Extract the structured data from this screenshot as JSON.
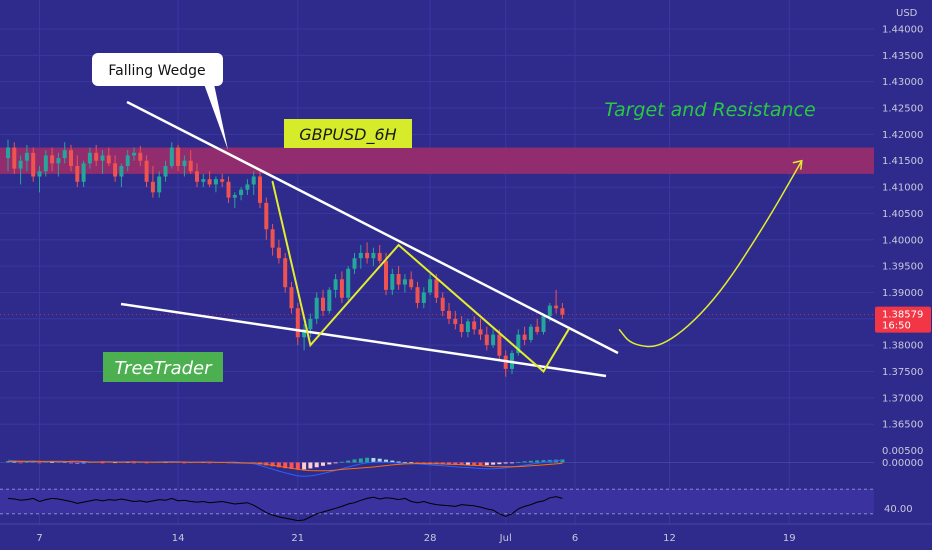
{
  "chart_data": [
    {
      "type": "candlestick",
      "symbol_label": "GBPUSD_6H",
      "currency": "USD",
      "ylim": [
        1.362,
        1.4455
      ],
      "y_ticks": [
        "1.44000",
        "1.43500",
        "1.43000",
        "1.42500",
        "1.42000",
        "1.41500",
        "1.41000",
        "1.40500",
        "1.40000",
        "1.39500",
        "1.39000",
        "1.38500",
        "1.38000",
        "1.37500",
        "1.37000",
        "1.36500"
      ],
      "x_ticks": [
        "7",
        "14",
        "21",
        "28",
        "Jul",
        "6",
        "12",
        "19"
      ],
      "last_price": {
        "value": "1.38579",
        "countdown": "16:50",
        "y": 1.38579
      },
      "resistance_zone": [
        1.4125,
        1.4175
      ],
      "candles": [
        {
          "o": 1.4155,
          "h": 1.419,
          "l": 1.413,
          "c": 1.4175
        },
        {
          "o": 1.4175,
          "h": 1.4185,
          "l": 1.4125,
          "c": 1.4135
        },
        {
          "o": 1.4135,
          "h": 1.416,
          "l": 1.4105,
          "c": 1.415
        },
        {
          "o": 1.415,
          "h": 1.418,
          "l": 1.413,
          "c": 1.4165
        },
        {
          "o": 1.4165,
          "h": 1.4175,
          "l": 1.411,
          "c": 1.412
        },
        {
          "o": 1.412,
          "h": 1.414,
          "l": 1.409,
          "c": 1.413
        },
        {
          "o": 1.413,
          "h": 1.417,
          "l": 1.412,
          "c": 1.416
        },
        {
          "o": 1.416,
          "h": 1.4175,
          "l": 1.413,
          "c": 1.4145
        },
        {
          "o": 1.4145,
          "h": 1.4165,
          "l": 1.412,
          "c": 1.4155
        },
        {
          "o": 1.4155,
          "h": 1.4185,
          "l": 1.4145,
          "c": 1.417
        },
        {
          "o": 1.417,
          "h": 1.418,
          "l": 1.413,
          "c": 1.414
        },
        {
          "o": 1.414,
          "h": 1.416,
          "l": 1.41,
          "c": 1.411
        },
        {
          "o": 1.411,
          "h": 1.415,
          "l": 1.41,
          "c": 1.4145
        },
        {
          "o": 1.4145,
          "h": 1.4175,
          "l": 1.4135,
          "c": 1.4165
        },
        {
          "o": 1.4165,
          "h": 1.418,
          "l": 1.414,
          "c": 1.415
        },
        {
          "o": 1.415,
          "h": 1.417,
          "l": 1.4125,
          "c": 1.416
        },
        {
          "o": 1.416,
          "h": 1.4175,
          "l": 1.414,
          "c": 1.4145
        },
        {
          "o": 1.4145,
          "h": 1.416,
          "l": 1.411,
          "c": 1.412
        },
        {
          "o": 1.412,
          "h": 1.4145,
          "l": 1.41,
          "c": 1.414
        },
        {
          "o": 1.414,
          "h": 1.417,
          "l": 1.413,
          "c": 1.416
        },
        {
          "o": 1.416,
          "h": 1.4175,
          "l": 1.415,
          "c": 1.4165
        },
        {
          "o": 1.4165,
          "h": 1.4178,
          "l": 1.414,
          "c": 1.415
        },
        {
          "o": 1.415,
          "h": 1.416,
          "l": 1.41,
          "c": 1.411
        },
        {
          "o": 1.411,
          "h": 1.414,
          "l": 1.408,
          "c": 1.409
        },
        {
          "o": 1.409,
          "h": 1.413,
          "l": 1.408,
          "c": 1.412
        },
        {
          "o": 1.412,
          "h": 1.415,
          "l": 1.411,
          "c": 1.414
        },
        {
          "o": 1.414,
          "h": 1.4185,
          "l": 1.4135,
          "c": 1.4175
        },
        {
          "o": 1.4175,
          "h": 1.418,
          "l": 1.413,
          "c": 1.414
        },
        {
          "o": 1.414,
          "h": 1.416,
          "l": 1.412,
          "c": 1.415
        },
        {
          "o": 1.415,
          "h": 1.417,
          "l": 1.4125,
          "c": 1.413
        },
        {
          "o": 1.413,
          "h": 1.4145,
          "l": 1.41,
          "c": 1.411
        },
        {
          "o": 1.411,
          "h": 1.4125,
          "l": 1.41,
          "c": 1.4115
        },
        {
          "o": 1.4115,
          "h": 1.413,
          "l": 1.41,
          "c": 1.4105
        },
        {
          "o": 1.4105,
          "h": 1.412,
          "l": 1.409,
          "c": 1.4115
        },
        {
          "o": 1.4115,
          "h": 1.4125,
          "l": 1.41,
          "c": 1.411
        },
        {
          "o": 1.411,
          "h": 1.412,
          "l": 1.407,
          "c": 1.408
        },
        {
          "o": 1.408,
          "h": 1.409,
          "l": 1.406,
          "c": 1.4085
        },
        {
          "o": 1.4085,
          "h": 1.41,
          "l": 1.4075,
          "c": 1.4095
        },
        {
          "o": 1.4095,
          "h": 1.4115,
          "l": 1.4085,
          "c": 1.4105
        },
        {
          "o": 1.4105,
          "h": 1.413,
          "l": 1.4085,
          "c": 1.412
        },
        {
          "o": 1.412,
          "h": 1.413,
          "l": 1.406,
          "c": 1.407
        },
        {
          "o": 1.407,
          "h": 1.408,
          "l": 1.4,
          "c": 1.402
        },
        {
          "o": 1.402,
          "h": 1.403,
          "l": 1.397,
          "c": 1.3985
        },
        {
          "o": 1.3985,
          "h": 1.4,
          "l": 1.3955,
          "c": 1.3965
        },
        {
          "o": 1.3965,
          "h": 1.3975,
          "l": 1.39,
          "c": 1.391
        },
        {
          "o": 1.391,
          "h": 1.392,
          "l": 1.386,
          "c": 1.387
        },
        {
          "o": 1.387,
          "h": 1.388,
          "l": 1.38,
          "c": 1.3815
        },
        {
          "o": 1.3815,
          "h": 1.384,
          "l": 1.379,
          "c": 1.383
        },
        {
          "o": 1.383,
          "h": 1.386,
          "l": 1.3815,
          "c": 1.385
        },
        {
          "o": 1.385,
          "h": 1.39,
          "l": 1.384,
          "c": 1.389
        },
        {
          "o": 1.389,
          "h": 1.3905,
          "l": 1.3855,
          "c": 1.3865
        },
        {
          "o": 1.3865,
          "h": 1.391,
          "l": 1.386,
          "c": 1.3905
        },
        {
          "o": 1.3905,
          "h": 1.3935,
          "l": 1.389,
          "c": 1.3925
        },
        {
          "o": 1.3925,
          "h": 1.394,
          "l": 1.388,
          "c": 1.389
        },
        {
          "o": 1.389,
          "h": 1.395,
          "l": 1.3885,
          "c": 1.3945
        },
        {
          "o": 1.3945,
          "h": 1.3975,
          "l": 1.3935,
          "c": 1.3965
        },
        {
          "o": 1.3965,
          "h": 1.399,
          "l": 1.3945,
          "c": 1.3975
        },
        {
          "o": 1.3975,
          "h": 1.3995,
          "l": 1.3955,
          "c": 1.3965
        },
        {
          "o": 1.3965,
          "h": 1.3985,
          "l": 1.395,
          "c": 1.3975
        },
        {
          "o": 1.3975,
          "h": 1.399,
          "l": 1.3955,
          "c": 1.396
        },
        {
          "o": 1.396,
          "h": 1.3975,
          "l": 1.3895,
          "c": 1.3905
        },
        {
          "o": 1.3905,
          "h": 1.3945,
          "l": 1.3895,
          "c": 1.3935
        },
        {
          "o": 1.3935,
          "h": 1.395,
          "l": 1.3905,
          "c": 1.3915
        },
        {
          "o": 1.3915,
          "h": 1.3935,
          "l": 1.39,
          "c": 1.3925
        },
        {
          "o": 1.3925,
          "h": 1.394,
          "l": 1.3905,
          "c": 1.391
        },
        {
          "o": 1.391,
          "h": 1.392,
          "l": 1.387,
          "c": 1.388
        },
        {
          "o": 1.388,
          "h": 1.391,
          "l": 1.387,
          "c": 1.39
        },
        {
          "o": 1.39,
          "h": 1.3935,
          "l": 1.3895,
          "c": 1.3925
        },
        {
          "o": 1.3925,
          "h": 1.3935,
          "l": 1.388,
          "c": 1.389
        },
        {
          "o": 1.389,
          "h": 1.39,
          "l": 1.3855,
          "c": 1.3865
        },
        {
          "o": 1.3865,
          "h": 1.388,
          "l": 1.384,
          "c": 1.385
        },
        {
          "o": 1.385,
          "h": 1.3865,
          "l": 1.383,
          "c": 1.384
        },
        {
          "o": 1.384,
          "h": 1.3855,
          "l": 1.3815,
          "c": 1.3825
        },
        {
          "o": 1.3825,
          "h": 1.385,
          "l": 1.3815,
          "c": 1.3845
        },
        {
          "o": 1.3845,
          "h": 1.3855,
          "l": 1.382,
          "c": 1.383
        },
        {
          "o": 1.383,
          "h": 1.385,
          "l": 1.381,
          "c": 1.382
        },
        {
          "o": 1.382,
          "h": 1.3835,
          "l": 1.379,
          "c": 1.38
        },
        {
          "o": 1.38,
          "h": 1.383,
          "l": 1.3795,
          "c": 1.382
        },
        {
          "o": 1.382,
          "h": 1.383,
          "l": 1.377,
          "c": 1.378
        },
        {
          "o": 1.378,
          "h": 1.379,
          "l": 1.374,
          "c": 1.3755
        },
        {
          "o": 1.3755,
          "h": 1.379,
          "l": 1.3745,
          "c": 1.3785
        },
        {
          "o": 1.3785,
          "h": 1.383,
          "l": 1.378,
          "c": 1.382
        },
        {
          "o": 1.382,
          "h": 1.3835,
          "l": 1.38,
          "c": 1.381
        },
        {
          "o": 1.381,
          "h": 1.384,
          "l": 1.3805,
          "c": 1.3835
        },
        {
          "o": 1.3835,
          "h": 1.385,
          "l": 1.382,
          "c": 1.3825
        },
        {
          "o": 1.3825,
          "h": 1.386,
          "l": 1.382,
          "c": 1.3855
        },
        {
          "o": 1.3855,
          "h": 1.388,
          "l": 1.3845,
          "c": 1.3875
        },
        {
          "o": 1.3875,
          "h": 1.3905,
          "l": 1.386,
          "c": 1.387
        },
        {
          "o": 1.387,
          "h": 1.388,
          "l": 1.385,
          "c": 1.3858
        }
      ],
      "pattern_lines": {
        "upper": [
          [
            0,
            1.423
          ],
          [
            95,
            1.375
          ]
        ],
        "lower": [
          [
            0,
            1.383
          ],
          [
            96,
            1.371
          ]
        ]
      },
      "zigzag": [
        [
          42,
          1.411
        ],
        [
          48,
          1.38
        ],
        [
          62,
          1.399
        ],
        [
          85,
          1.375
        ],
        [
          89,
          1.383
        ]
      ],
      "projection_arrow": [
        [
          97,
          1.383
        ],
        [
          99,
          1.38
        ],
        [
          104,
          1.3795
        ],
        [
          112,
          1.388
        ],
        [
          120,
          1.4025
        ],
        [
          126,
          1.415
        ]
      ],
      "annotations": {
        "wedge_label": "Falling Wedge",
        "target_label": "Target and Resistance",
        "brand": "TreeTrader"
      },
      "macd": {
        "y_ticks": [
          "0.00500",
          "0.00000"
        ],
        "hist": [
          0.0006,
          0.0004,
          -0.0002,
          0.0003,
          0.0005,
          -0.0003,
          0.0004,
          0.0002,
          0.0005,
          0.0003,
          -0.0004,
          -0.0006,
          -0.0003,
          0.0002,
          0.0004,
          -0.0002,
          0.0003,
          0.0001,
          0.0004,
          0.0002,
          -0.0003,
          0.0002,
          -0.0001,
          0.0003,
          0.0004,
          0.0002,
          0.0005,
          0.0003,
          -0.0002,
          0.0001,
          0.0003,
          0.0002,
          -0.0002,
          0.0001,
          0.0002,
          -0.0003,
          -0.0004,
          -0.0002,
          -0.0001,
          -0.0003,
          -0.0008,
          -0.0012,
          -0.0016,
          -0.002,
          -0.0024,
          -0.0027,
          -0.003,
          -0.0029,
          -0.0025,
          -0.002,
          -0.0014,
          -0.0008,
          -0.0003,
          0.0003,
          0.0008,
          0.0013,
          0.0017,
          0.002,
          0.0019,
          0.0016,
          0.0012,
          0.0008,
          0.0004,
          0.0002,
          0.0001,
          -0.0002,
          -0.0004,
          -0.0005,
          -0.0007,
          -0.0008,
          -0.0009,
          -0.001,
          -0.0011,
          -0.001,
          -0.0011,
          -0.0012,
          -0.0011,
          -0.0009,
          -0.0007,
          -0.0004,
          -0.0001,
          0.0002,
          0.0005,
          0.0007,
          0.0009,
          0.001,
          0.0011,
          0.0012,
          0.0013
        ],
        "macd_line": [
          0.001,
          0.0008,
          0.0005,
          0.0006,
          0.0007,
          0.0004,
          0.0005,
          0.0005,
          0.0006,
          0.0005,
          0.0002,
          0.0,
          0.0001,
          0.0002,
          0.0003,
          0.0002,
          0.0003,
          0.0002,
          0.0003,
          0.0003,
          0.0001,
          0.0002,
          0.0001,
          0.0002,
          0.0003,
          0.0003,
          0.0004,
          0.0003,
          0.0001,
          0.0001,
          0.0002,
          0.0002,
          0.0,
          0.0,
          0.0001,
          -0.0001,
          -0.0003,
          -0.0003,
          -0.0003,
          -0.0005,
          -0.0012,
          -0.002,
          -0.0028,
          -0.0036,
          -0.0043,
          -0.005,
          -0.0056,
          -0.0058,
          -0.0056,
          -0.0052,
          -0.0046,
          -0.004,
          -0.0033,
          -0.0026,
          -0.0019,
          -0.0012,
          -0.0006,
          -0.0001,
          0.0001,
          0.0002,
          0.0001,
          0.0,
          -0.0002,
          -0.0003,
          -0.0004,
          -0.0006,
          -0.0008,
          -0.001,
          -0.0012,
          -0.0014,
          -0.0016,
          -0.0018,
          -0.002,
          -0.0021,
          -0.0023,
          -0.0025,
          -0.0026,
          -0.0026,
          -0.0025,
          -0.0022,
          -0.0019,
          -0.0015,
          -0.0011,
          -0.0007,
          -0.0003,
          0.0001,
          0.0004,
          0.0007,
          0.001
        ],
        "signal_line": [
          0.0004,
          0.0004,
          0.0005,
          0.0004,
          0.0003,
          0.0005,
          0.0003,
          0.0004,
          0.0003,
          0.0003,
          0.0005,
          0.0005,
          0.0004,
          0.0002,
          0.0001,
          0.0003,
          0.0002,
          0.0002,
          0.0001,
          0.0002,
          0.0003,
          0.0002,
          0.0002,
          0.0001,
          0.0001,
          0.0002,
          0.0001,
          0.0002,
          0.0002,
          0.0001,
          0.0001,
          0.0001,
          0.0002,
          0.0001,
          0.0,
          0.0001,
          0.0001,
          -0.0001,
          -0.0002,
          -0.0002,
          -0.0004,
          -0.0008,
          -0.0012,
          -0.0016,
          -0.002,
          -0.0024,
          -0.0028,
          -0.0032,
          -0.0034,
          -0.0035,
          -0.0035,
          -0.0034,
          -0.0032,
          -0.0029,
          -0.0027,
          -0.0025,
          -0.0023,
          -0.0021,
          -0.0019,
          -0.0016,
          -0.0013,
          -0.001,
          -0.0008,
          -0.0006,
          -0.0005,
          -0.0004,
          -0.0004,
          -0.0005,
          -0.0005,
          -0.0006,
          -0.0007,
          -0.0008,
          -0.0009,
          -0.0011,
          -0.0012,
          -0.0013,
          -0.0015,
          -0.0017,
          -0.0018,
          -0.0018,
          -0.0018,
          -0.0017,
          -0.0016,
          -0.0014,
          -0.0012,
          -0.001,
          -0.0008,
          -0.0006,
          -0.0003
        ]
      },
      "rsi": {
        "y_ticks": [
          "40.00"
        ],
        "bands": [
          70,
          30
        ],
        "values": [
          55,
          54,
          52,
          53,
          55,
          50,
          53,
          55,
          54,
          52,
          50,
          47,
          49,
          51,
          53,
          51,
          53,
          52,
          54,
          52,
          50,
          51,
          49,
          51,
          53,
          52,
          55,
          51,
          52,
          50,
          49,
          50,
          48,
          49,
          50,
          48,
          46,
          47,
          48,
          44,
          38,
          32,
          28,
          25,
          23,
          21,
          19,
          20,
          25,
          30,
          33,
          36,
          39,
          42,
          46,
          48,
          52,
          55,
          57,
          54,
          56,
          55,
          53,
          55,
          50,
          48,
          50,
          47,
          45,
          44,
          43,
          42,
          45,
          44,
          43,
          41,
          38,
          36,
          30,
          26,
          30,
          38,
          42,
          45,
          49,
          51,
          56,
          58,
          55
        ]
      },
      "colors": {
        "background": "#2e2b8c",
        "up": "#26a69a",
        "down": "#ef5350",
        "price_tag": "#f23645",
        "wedge_lines": "#ffffff",
        "zigzag": "#e3ec2e",
        "target_text": "#28c940",
        "projection": "#e3ec2e",
        "symbol_box": "#d6ec2a",
        "resistance_zone": "#9c2c6a",
        "brand_box": "#4caf50",
        "macd_line": "#2962ff",
        "signal_line": "#ff6d00",
        "rsi_line": "#000000",
        "rsi_band": "#3a329e"
      }
    }
  ]
}
